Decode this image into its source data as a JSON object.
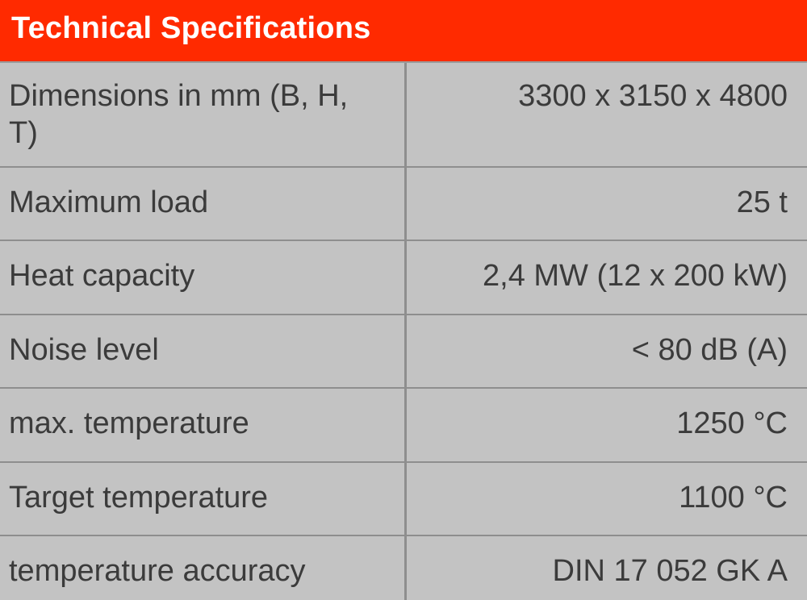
{
  "header": {
    "title": "Technical Specifications"
  },
  "rows": [
    {
      "label": "Dimensions in mm (B, H, T)",
      "value": "3300 x 3150 x 4800"
    },
    {
      "label": "Maximum load",
      "value": "25 t"
    },
    {
      "label": "Heat capacity",
      "value": "2,4 MW (12 x 200 kW)"
    },
    {
      "label": "Noise level",
      "value": "< 80 dB (A)"
    },
    {
      "label": "max. temperature",
      "value": "1250 °C"
    },
    {
      "label": "Target temperature",
      "value": "1100 °C"
    },
    {
      "label": "temperature accuracy",
      "value": "DIN 17 052 GK A"
    }
  ],
  "colors": {
    "header_bg": "#ff2a00",
    "header_text": "#ffffff",
    "body_bg": "#c3c3c3",
    "text": "#3b3b3b",
    "grid": "#8e8e8e"
  }
}
